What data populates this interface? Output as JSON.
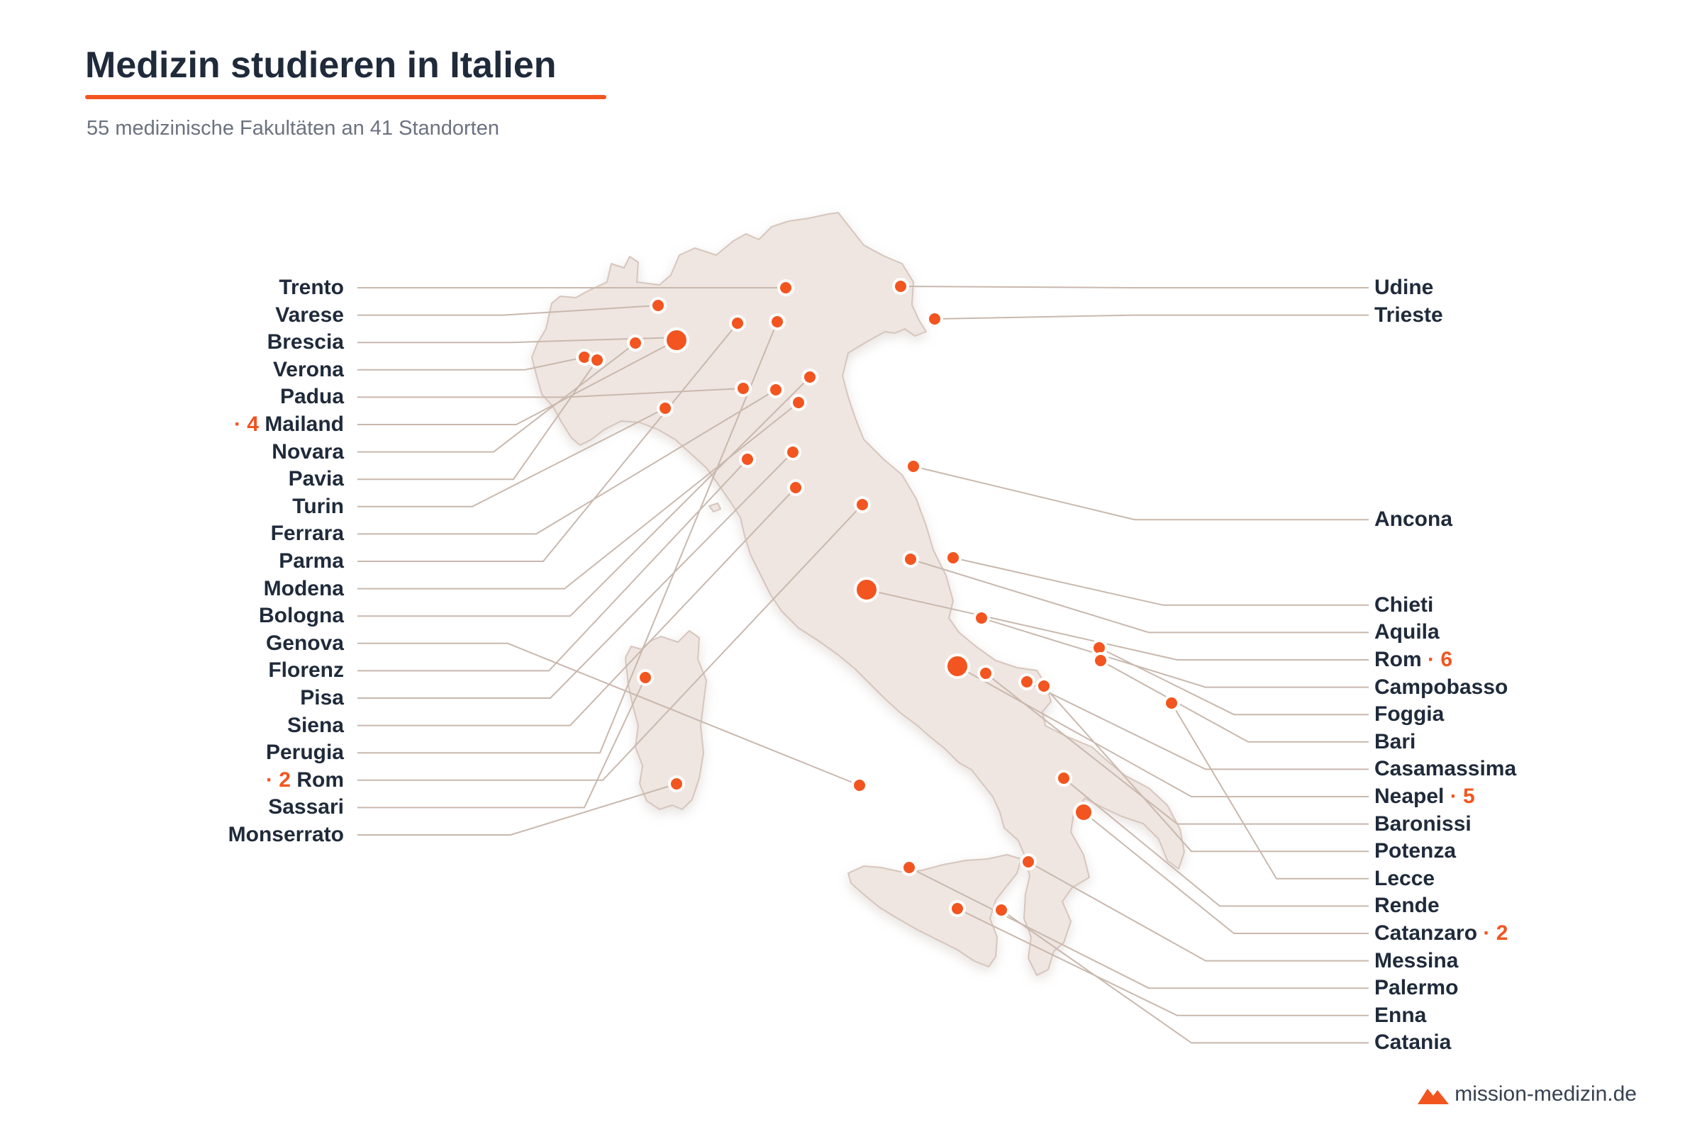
{
  "title": "Medizin studieren in Italien",
  "subtitle": "55 medizinische Fakultäten an 41 Standorten",
  "brand": "mission-medizin.de",
  "colors": {
    "accent": "#f2551f",
    "land": "#efe6e1",
    "land_stroke": "#d6c6bd",
    "leader": "#c9b8ad",
    "text": "#1f2a3a"
  },
  "left_labels": [
    {
      "name": "Trento",
      "count": ""
    },
    {
      "name": "Varese",
      "count": ""
    },
    {
      "name": "Brescia",
      "count": ""
    },
    {
      "name": "Verona",
      "count": ""
    },
    {
      "name": "Padua",
      "count": ""
    },
    {
      "name": "Mailand",
      "count": "· 4"
    },
    {
      "name": "Novara",
      "count": ""
    },
    {
      "name": "Pavia",
      "count": ""
    },
    {
      "name": "Turin",
      "count": ""
    },
    {
      "name": "Ferrara",
      "count": ""
    },
    {
      "name": "Parma",
      "count": ""
    },
    {
      "name": "Modena",
      "count": ""
    },
    {
      "name": "Bologna",
      "count": ""
    },
    {
      "name": "Genova",
      "count": ""
    },
    {
      "name": "Florenz",
      "count": ""
    },
    {
      "name": "Pisa",
      "count": ""
    },
    {
      "name": "Siena",
      "count": ""
    },
    {
      "name": "Perugia",
      "count": ""
    },
    {
      "name": "Rom",
      "count": "· 2"
    },
    {
      "name": "Sassari",
      "count": ""
    },
    {
      "name": "Monserrato",
      "count": ""
    }
  ],
  "right_labels": [
    {
      "name": "Udine",
      "count": ""
    },
    {
      "name": "Trieste",
      "count": ""
    },
    {
      "name": "Ancona",
      "count": ""
    },
    {
      "name": "Chieti",
      "count": ""
    },
    {
      "name": "Aquila",
      "count": ""
    },
    {
      "name": "Rom",
      "count": "· 6"
    },
    {
      "name": "Campobasso",
      "count": ""
    },
    {
      "name": "Foggia",
      "count": ""
    },
    {
      "name": "Bari",
      "count": ""
    },
    {
      "name": "Casamassima",
      "count": ""
    },
    {
      "name": "Neapel",
      "count": "· 5"
    },
    {
      "name": "Baronissi",
      "count": ""
    },
    {
      "name": "Potenza",
      "count": ""
    },
    {
      "name": "Lecce",
      "count": ""
    },
    {
      "name": "Rende",
      "count": ""
    },
    {
      "name": "Catanzaro",
      "count": "· 2"
    },
    {
      "name": "Messina",
      "count": ""
    },
    {
      "name": "Palermo",
      "count": ""
    },
    {
      "name": "Enna",
      "count": ""
    },
    {
      "name": "Catania",
      "count": ""
    }
  ]
}
